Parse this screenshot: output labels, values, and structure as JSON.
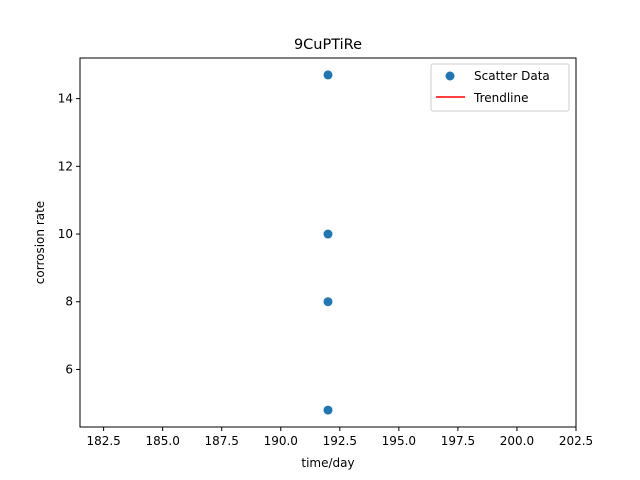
{
  "chart_data": {
    "type": "scatter",
    "title": "9CuPTiRe",
    "xlabel": "time/day",
    "ylabel": "corrosion rate",
    "xlim": [
      181.5,
      202.5
    ],
    "ylim": [
      4.3,
      15.2
    ],
    "xticks": [
      182.5,
      185.0,
      187.5,
      190.0,
      192.5,
      195.0,
      197.5,
      200.0,
      202.5
    ],
    "yticks": [
      6,
      8,
      10,
      12,
      14
    ],
    "grid": false,
    "legend_position": "top-right",
    "series": [
      {
        "name": "Scatter Data",
        "kind": "scatter",
        "color": "#1f77b4",
        "x": [
          192,
          192,
          192,
          192
        ],
        "y": [
          14.7,
          10.0,
          8.0,
          4.8
        ]
      },
      {
        "name": "Trendline",
        "kind": "line",
        "color": "#ff0000",
        "x": [],
        "y": []
      }
    ]
  }
}
